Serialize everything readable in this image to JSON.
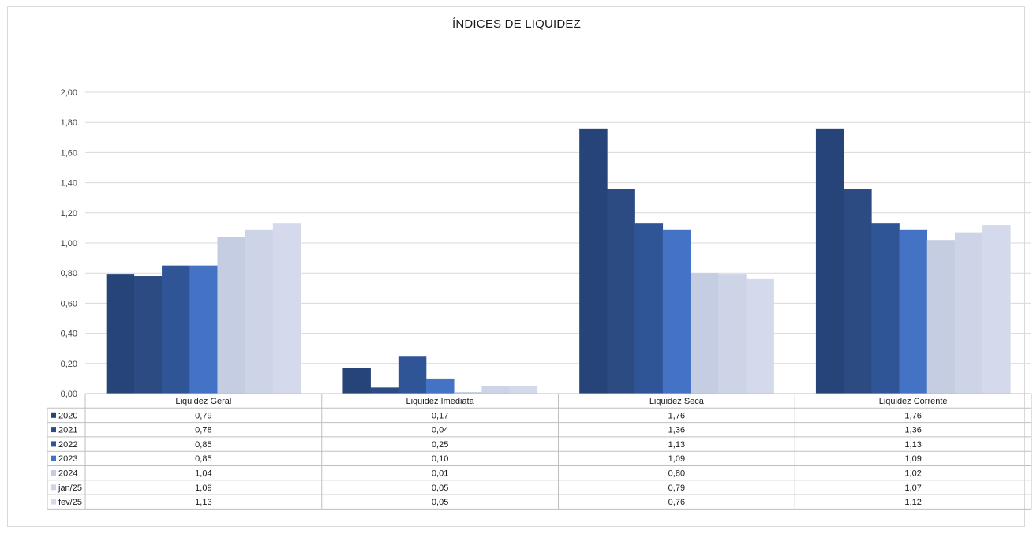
{
  "chart_data": {
    "type": "bar",
    "title": "ÍNDICES DE LIQUIDEZ",
    "categories": [
      "Liquidez Geral",
      "Liquidez Imediata",
      "Liquidez Seca",
      "Liquidez Corrente"
    ],
    "ylim": [
      0,
      2
    ],
    "yticks": [
      "0,00",
      "0,20",
      "0,40",
      "0,60",
      "0,80",
      "1,00",
      "1,20",
      "1,40",
      "1,60",
      "1,80",
      "2,00"
    ],
    "grid": true,
    "legend": "data-table",
    "series": [
      {
        "name": "2020",
        "color": "#264478",
        "values": [
          0.79,
          0.17,
          1.76,
          1.76
        ],
        "labels": [
          "0,79",
          "0,17",
          "1,76",
          "1,76"
        ]
      },
      {
        "name": "2021",
        "color": "#2c4b82",
        "values": [
          0.78,
          0.04,
          1.36,
          1.36
        ],
        "labels": [
          "0,78",
          "0,04",
          "1,36",
          "1,36"
        ]
      },
      {
        "name": "2022",
        "color": "#2f5597",
        "values": [
          0.85,
          0.25,
          1.13,
          1.13
        ],
        "labels": [
          "0,85",
          "0,25",
          "1,13",
          "1,13"
        ]
      },
      {
        "name": "2023",
        "color": "#4472c4",
        "values": [
          0.85,
          0.1,
          1.09,
          1.09
        ],
        "labels": [
          "0,85",
          "0,10",
          "1,09",
          "1,09"
        ]
      },
      {
        "name": "2024",
        "color": "#c5cde2",
        "values": [
          1.04,
          0.01,
          0.8,
          1.02
        ],
        "labels": [
          "1,04",
          "0,01",
          "0,80",
          "1,02"
        ]
      },
      {
        "name": "jan/25",
        "color": "#cdd4e7",
        "values": [
          1.09,
          0.05,
          0.79,
          1.07
        ],
        "labels": [
          "1,09",
          "0,05",
          "0,79",
          "1,07"
        ]
      },
      {
        "name": "fev/25",
        "color": "#d4daec",
        "values": [
          1.13,
          0.05,
          0.76,
          1.12
        ],
        "labels": [
          "1,13",
          "0,05",
          "0,76",
          "1,12"
        ]
      }
    ]
  }
}
